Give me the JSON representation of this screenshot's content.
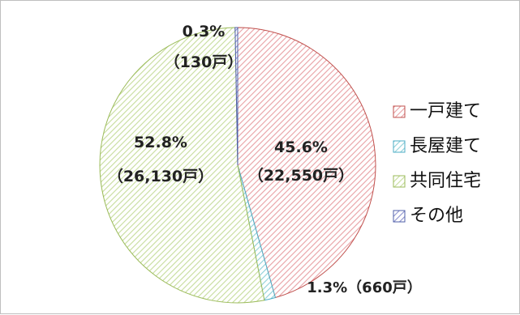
{
  "chart_data": {
    "type": "pie",
    "categories": [
      "一戸建て",
      "長屋建て",
      "共同住宅",
      "その他"
    ],
    "values": [
      45.6,
      1.3,
      52.8,
      0.3
    ],
    "counts": [
      "22,550戸",
      "660戸",
      "26,130戸",
      "130戸"
    ],
    "data_labels": [
      {
        "pct": "45.6%",
        "count": "（22,550戸）"
      },
      {
        "pct": "1.3%",
        "count": "（660戸）"
      },
      {
        "pct": "52.8%",
        "count": "（26,130戸）"
      },
      {
        "pct": "0.3%",
        "count": "（130戸）"
      }
    ],
    "colors": {
      "一戸建て": "#e8a0a4",
      "長屋建て": "#8fd0d8",
      "共同住宅": "#c6dc9c",
      "その他": "#8f94cf"
    },
    "edge_colors": {
      "一戸建て": "#c0504d",
      "長屋建て": "#4bacc6",
      "共同住宅": "#9bbb59",
      "その他": "#4f5fa8"
    },
    "legend_position": "right",
    "start_angle": "12 o'clock, clockwise",
    "fill_pattern": "diagonal hatch"
  }
}
